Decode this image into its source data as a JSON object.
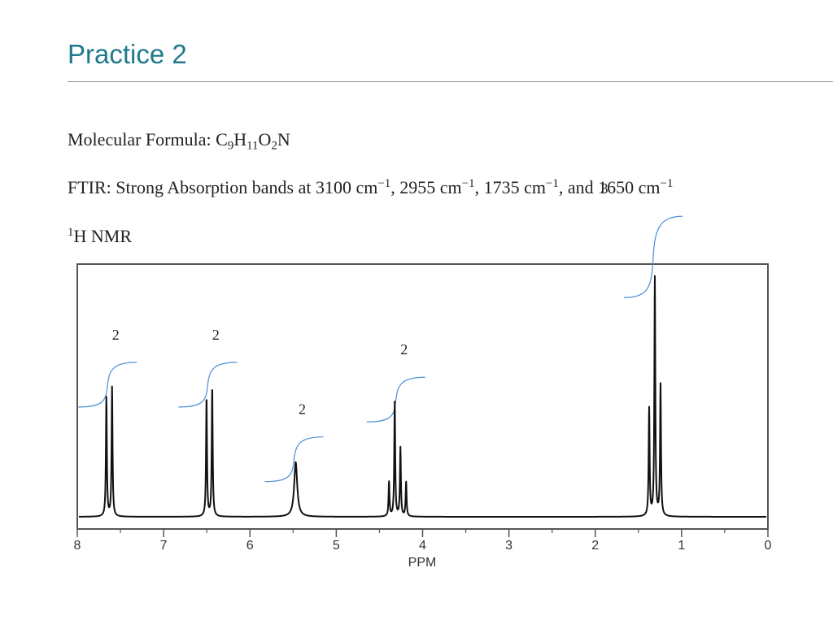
{
  "slide": {
    "title": "Practice 2"
  },
  "molecular_formula": {
    "label": "Molecular Formula: ",
    "parts": [
      {
        "text": "C",
        "sub": "9"
      },
      {
        "text": "H",
        "sub": "11"
      },
      {
        "text": "O",
        "sub": "2"
      },
      {
        "text": "N",
        "sub": ""
      }
    ]
  },
  "ftir": {
    "label": "FTIR: Strong Absorption bands at ",
    "unit": "cm",
    "unit_exponent": "−1",
    "bands": [
      "3100",
      "2955",
      "1735",
      "1650"
    ],
    "separators": [
      ", ",
      ", ",
      ", and ",
      ""
    ]
  },
  "nmr_heading": {
    "superscript": "1",
    "text": "H NMR"
  },
  "chart_data": {
    "type": "line",
    "xlabel": "PPM",
    "xlim": [
      8,
      0
    ],
    "x_reversed": true,
    "x_ticks": [
      "8",
      "7",
      "6",
      "5",
      "4",
      "3",
      "2",
      "1",
      "0"
    ],
    "grid": false,
    "peaks": [
      {
        "shift": 7.63,
        "relative_height": 0.52,
        "multiplicity": "doublet",
        "integration": "2"
      },
      {
        "shift": 6.47,
        "relative_height": 0.52,
        "multiplicity": "doublet",
        "integration": "2"
      },
      {
        "shift": 5.47,
        "relative_height": 0.22,
        "multiplicity": "singlet",
        "integration": "2"
      },
      {
        "shift": 4.29,
        "relative_height": 0.46,
        "multiplicity": "quartet",
        "integration": "2"
      },
      {
        "shift": 1.31,
        "relative_height": 0.96,
        "multiplicity": "triplet",
        "integration": "3"
      }
    ],
    "colors": {
      "spectrum": "#111111",
      "integral": "#4a8fd8",
      "frame": "#555555"
    }
  }
}
